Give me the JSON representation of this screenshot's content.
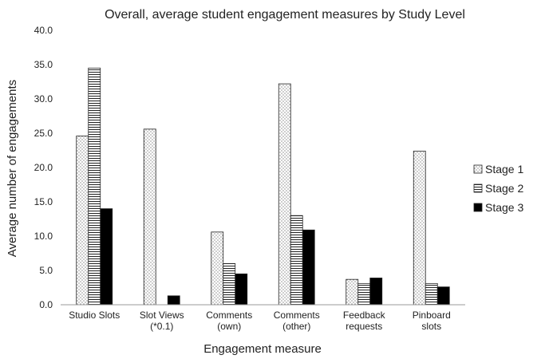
{
  "chart_data": {
    "type": "bar",
    "title": "Overall, average student engagement measures by Study Level",
    "xlabel": "Engagement measure",
    "ylabel": "Average number of engagements",
    "ylim": [
      0,
      40
    ],
    "yticks": [
      "0.0",
      "5.0",
      "10.0",
      "15.0",
      "20.0",
      "25.0",
      "30.0",
      "35.0",
      "40.0"
    ],
    "grid": false,
    "legend_position": "right",
    "categories": [
      [
        "Studio Slots"
      ],
      [
        "Slot Views",
        "(*0.1)"
      ],
      [
        "Comments",
        "(own)"
      ],
      [
        "Comments",
        "(other)"
      ],
      [
        "Feedback",
        "requests"
      ],
      [
        "Pinboard",
        "slots"
      ]
    ],
    "series": [
      {
        "name": "Stage 1",
        "pattern": "dots",
        "values": [
          24.6,
          25.6,
          10.6,
          32.2,
          3.7,
          22.4
        ]
      },
      {
        "name": "Stage 2",
        "pattern": "horizontal-lines",
        "values": [
          34.5,
          0,
          6.0,
          13.0,
          3.1,
          3.1
        ]
      },
      {
        "name": "Stage 3",
        "pattern": "solid",
        "values": [
          14.0,
          1.3,
          4.5,
          10.9,
          3.9,
          2.6
        ]
      }
    ]
  }
}
